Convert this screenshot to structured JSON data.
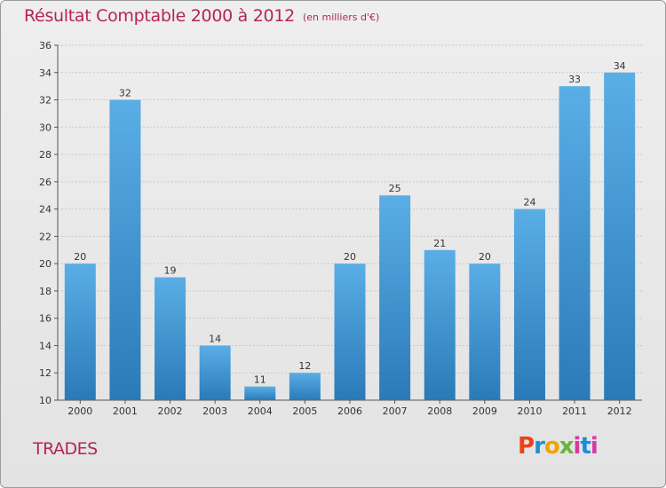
{
  "title": "Résultat Comptable 2000 à 2012",
  "subtitle": "(en milliers d'€)",
  "commune": "TRADES",
  "logo_text": "Proxiti",
  "colors": {
    "title": "#b5264f",
    "bar_top": "#5aaee6",
    "bar_bottom": "#2a7ab8"
  },
  "chart_data": {
    "type": "bar",
    "categories": [
      "2000",
      "2001",
      "2002",
      "2003",
      "2004",
      "2005",
      "2006",
      "2007",
      "2008",
      "2009",
      "2010",
      "2011",
      "2012"
    ],
    "values": [
      20,
      32,
      19,
      14,
      11,
      12,
      20,
      25,
      21,
      20,
      24,
      33,
      34
    ],
    "ylim": [
      10,
      36
    ],
    "yticks": [
      10,
      12,
      14,
      16,
      18,
      20,
      22,
      24,
      26,
      28,
      30,
      32,
      34,
      36
    ],
    "xlabel": "",
    "ylabel": "",
    "grid": true,
    "data_labels": true
  }
}
